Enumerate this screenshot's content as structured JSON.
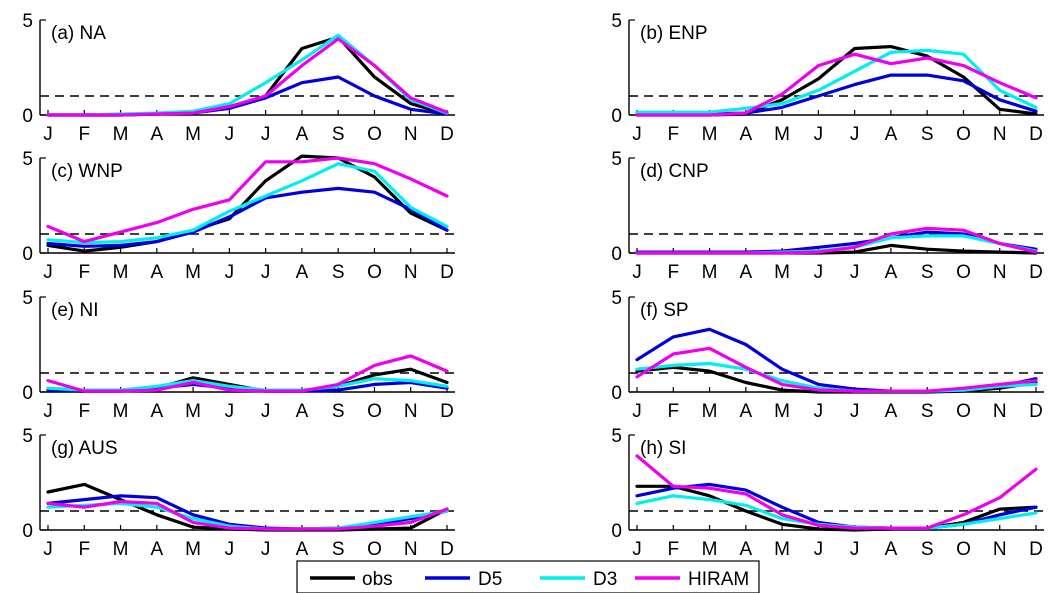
{
  "legend": {
    "entries": [
      {
        "label": "obs",
        "color": "#000000"
      },
      {
        "label": "D5",
        "color": "#0000dd"
      },
      {
        "label": "D3",
        "color": "#00eeee"
      },
      {
        "label": "HIRAM",
        "color": "#ee00ee"
      }
    ],
    "placement": "bottom-center"
  },
  "chart_data": [
    {
      "type": "line",
      "title": "(a) NA",
      "x": [
        "J",
        "F",
        "M",
        "A",
        "M",
        "J",
        "J",
        "A",
        "S",
        "O",
        "N",
        "D"
      ],
      "ylim": [
        0,
        5
      ],
      "yticks": [
        0,
        5
      ],
      "reference_line": 1,
      "series": [
        {
          "name": "obs",
          "values": [
            0,
            0,
            0,
            0.05,
            0.15,
            0.35,
            1.0,
            3.5,
            4.1,
            2.0,
            0.6,
            0.05
          ]
        },
        {
          "name": "D5",
          "values": [
            0,
            0,
            0,
            0.05,
            0.1,
            0.35,
            0.9,
            1.7,
            2.0,
            1.0,
            0.3,
            0.05
          ]
        },
        {
          "name": "D3",
          "values": [
            0,
            0,
            0.05,
            0.1,
            0.2,
            0.6,
            1.7,
            2.9,
            4.2,
            2.6,
            0.8,
            0.1
          ]
        },
        {
          "name": "HIRAM",
          "values": [
            0,
            0,
            0,
            0.05,
            0.1,
            0.45,
            1.0,
            2.6,
            4.0,
            2.6,
            0.9,
            0.15
          ]
        }
      ]
    },
    {
      "type": "line",
      "title": "(b) ENP",
      "x": [
        "J",
        "F",
        "M",
        "A",
        "M",
        "J",
        "J",
        "A",
        "S",
        "O",
        "N",
        "D"
      ],
      "ylim": [
        0,
        5
      ],
      "yticks": [
        0,
        5
      ],
      "reference_line": 1,
      "series": [
        {
          "name": "obs",
          "values": [
            0,
            0,
            0,
            0.05,
            0.8,
            1.9,
            3.5,
            3.6,
            3.1,
            2.0,
            0.3,
            0.05
          ]
        },
        {
          "name": "D5",
          "values": [
            0.05,
            0.05,
            0.05,
            0.1,
            0.4,
            1.0,
            1.6,
            2.1,
            2.1,
            1.8,
            0.8,
            0.2
          ]
        },
        {
          "name": "D3",
          "values": [
            0.15,
            0.15,
            0.15,
            0.35,
            0.6,
            1.3,
            2.3,
            3.3,
            3.4,
            3.2,
            1.3,
            0.4
          ]
        },
        {
          "name": "HIRAM",
          "values": [
            0,
            0,
            0,
            0.1,
            1.1,
            2.6,
            3.2,
            2.7,
            3.0,
            2.6,
            1.7,
            0.9
          ]
        }
      ]
    },
    {
      "type": "line",
      "title": "(c) WNP",
      "x": [
        "J",
        "F",
        "M",
        "A",
        "M",
        "J",
        "J",
        "A",
        "S",
        "O",
        "N",
        "D"
      ],
      "ylim": [
        0,
        5
      ],
      "yticks": [
        0,
        5
      ],
      "reference_line": 1,
      "series": [
        {
          "name": "obs",
          "values": [
            0.4,
            0.1,
            0.3,
            0.6,
            1.2,
            1.8,
            3.8,
            5.1,
            5.0,
            4.0,
            2.1,
            1.2
          ]
        },
        {
          "name": "D5",
          "values": [
            0.5,
            0.35,
            0.4,
            0.6,
            1.1,
            1.9,
            2.9,
            3.2,
            3.4,
            3.2,
            2.3,
            1.2
          ]
        },
        {
          "name": "D3",
          "values": [
            0.7,
            0.55,
            0.6,
            0.8,
            1.2,
            2.2,
            3.0,
            3.8,
            4.7,
            4.3,
            2.4,
            1.4
          ]
        },
        {
          "name": "HIRAM",
          "values": [
            1.4,
            0.6,
            1.1,
            1.6,
            2.3,
            2.8,
            4.8,
            4.8,
            5.0,
            4.7,
            3.9,
            3.0
          ]
        }
      ]
    },
    {
      "type": "line",
      "title": "(d) CNP",
      "x": [
        "J",
        "F",
        "M",
        "A",
        "M",
        "J",
        "J",
        "A",
        "S",
        "O",
        "N",
        "D"
      ],
      "ylim": [
        0,
        5
      ],
      "yticks": [
        0,
        5
      ],
      "reference_line": 1,
      "series": [
        {
          "name": "obs",
          "values": [
            0,
            0,
            0,
            0,
            0,
            0,
            0.05,
            0.4,
            0.2,
            0.1,
            0.05,
            0
          ]
        },
        {
          "name": "D5",
          "values": [
            0.05,
            0.05,
            0.05,
            0.05,
            0.1,
            0.3,
            0.5,
            0.8,
            1.1,
            1.0,
            0.5,
            0.2
          ]
        },
        {
          "name": "D3",
          "values": [
            0,
            0,
            0,
            0,
            0.05,
            0.1,
            0.3,
            0.8,
            0.9,
            0.9,
            0.5,
            0.1
          ]
        },
        {
          "name": "HIRAM",
          "values": [
            0,
            0,
            0,
            0,
            0,
            0.05,
            0.3,
            1.0,
            1.3,
            1.2,
            0.5,
            0.05
          ]
        }
      ]
    },
    {
      "type": "line",
      "title": "(e) NI",
      "x": [
        "J",
        "F",
        "M",
        "A",
        "M",
        "J",
        "J",
        "A",
        "S",
        "O",
        "N",
        "D"
      ],
      "ylim": [
        0,
        5
      ],
      "yticks": [
        0,
        5
      ],
      "reference_line": 1,
      "series": [
        {
          "name": "obs",
          "values": [
            0.1,
            0.05,
            0.05,
            0.2,
            0.75,
            0.4,
            0.05,
            0.05,
            0.3,
            0.9,
            1.2,
            0.5
          ]
        },
        {
          "name": "D5",
          "values": [
            0.1,
            0.1,
            0.1,
            0.2,
            0.4,
            0.2,
            0.05,
            0.05,
            0.1,
            0.4,
            0.5,
            0.2
          ]
        },
        {
          "name": "D3",
          "values": [
            0.2,
            0.1,
            0.1,
            0.3,
            0.6,
            0.3,
            0.1,
            0.1,
            0.3,
            0.7,
            0.6,
            0.3
          ]
        },
        {
          "name": "HIRAM",
          "values": [
            0.6,
            0.05,
            0.05,
            0.1,
            0.5,
            0.1,
            0.05,
            0.05,
            0.4,
            1.4,
            1.9,
            1.1
          ]
        }
      ]
    },
    {
      "type": "line",
      "title": "(f) SP",
      "x": [
        "J",
        "F",
        "M",
        "A",
        "M",
        "J",
        "J",
        "A",
        "S",
        "O",
        "N",
        "D"
      ],
      "ylim": [
        0,
        5
      ],
      "yticks": [
        0,
        5
      ],
      "reference_line": 1,
      "series": [
        {
          "name": "obs",
          "values": [
            1.1,
            1.3,
            1.1,
            0.5,
            0.1,
            0,
            0,
            0,
            0,
            0.05,
            0.2,
            0.5
          ]
        },
        {
          "name": "D5",
          "values": [
            1.7,
            2.9,
            3.3,
            2.5,
            1.2,
            0.4,
            0.15,
            0.05,
            0.05,
            0.1,
            0.3,
            0.7
          ]
        },
        {
          "name": "D3",
          "values": [
            1.2,
            1.4,
            1.5,
            1.2,
            0.6,
            0.2,
            0.05,
            0.05,
            0.05,
            0.1,
            0.3,
            0.4
          ]
        },
        {
          "name": "HIRAM",
          "values": [
            0.8,
            2.0,
            2.3,
            1.3,
            0.4,
            0.1,
            0.05,
            0.05,
            0.05,
            0.2,
            0.4,
            0.6
          ]
        }
      ]
    },
    {
      "type": "line",
      "title": "(g) AUS",
      "x": [
        "J",
        "F",
        "M",
        "A",
        "M",
        "J",
        "J",
        "A",
        "S",
        "O",
        "N",
        "D"
      ],
      "ylim": [
        0,
        5
      ],
      "yticks": [
        0,
        5
      ],
      "reference_line": 1,
      "series": [
        {
          "name": "obs",
          "values": [
            2.0,
            2.4,
            1.6,
            0.8,
            0.15,
            0.05,
            0,
            0,
            0,
            0.05,
            0.1,
            1.1
          ]
        },
        {
          "name": "D5",
          "values": [
            1.4,
            1.6,
            1.8,
            1.7,
            0.8,
            0.3,
            0.1,
            0.05,
            0.1,
            0.3,
            0.6,
            1.0
          ]
        },
        {
          "name": "D3",
          "values": [
            1.2,
            1.3,
            1.4,
            1.2,
            0.6,
            0.2,
            0.05,
            0.05,
            0.1,
            0.4,
            0.7,
            1.0
          ]
        },
        {
          "name": "HIRAM",
          "values": [
            1.4,
            1.2,
            1.5,
            1.4,
            0.4,
            0.1,
            0.05,
            0.05,
            0.05,
            0.2,
            0.4,
            1.1
          ]
        }
      ]
    },
    {
      "type": "line",
      "title": "(h) SI",
      "x": [
        "J",
        "F",
        "M",
        "A",
        "M",
        "J",
        "J",
        "A",
        "S",
        "O",
        "N",
        "D"
      ],
      "ylim": [
        0,
        5
      ],
      "yticks": [
        0,
        5
      ],
      "reference_line": 1,
      "series": [
        {
          "name": "obs",
          "values": [
            2.3,
            2.3,
            1.8,
            1.0,
            0.3,
            0.05,
            0,
            0.05,
            0.1,
            0.4,
            1.1,
            1.2
          ]
        },
        {
          "name": "D5",
          "values": [
            1.8,
            2.2,
            2.4,
            2.1,
            1.2,
            0.4,
            0.15,
            0.1,
            0.1,
            0.3,
            0.8,
            1.2
          ]
        },
        {
          "name": "D3",
          "values": [
            1.4,
            1.8,
            1.6,
            1.3,
            0.6,
            0.3,
            0.15,
            0.1,
            0.1,
            0.3,
            0.6,
            0.9
          ]
        },
        {
          "name": "HIRAM",
          "values": [
            3.9,
            2.3,
            2.2,
            1.9,
            0.8,
            0.25,
            0.1,
            0.1,
            0.1,
            0.8,
            1.7,
            3.2
          ]
        }
      ]
    }
  ]
}
